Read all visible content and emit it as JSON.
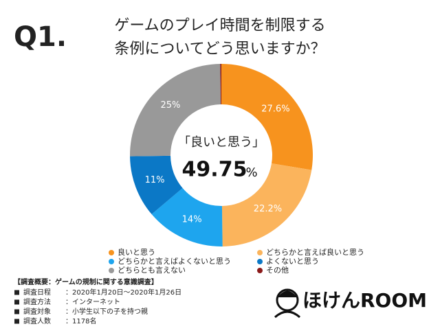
{
  "chart_data": {
    "type": "donut",
    "badge": "Q1.",
    "title_lines": [
      "ゲームのプレイ時間を制限する",
      "条例についてどう思いますか？"
    ],
    "categories": [
      "良いと思う",
      "どちらかと言えば良いと思う",
      "どちらかと言えばよくないと思う",
      "よくないと思う",
      "どちらとも言えない",
      "その他"
    ],
    "values": [
      27.6,
      22.2,
      14,
      11,
      25,
      0.2
    ],
    "value_labels": [
      "27.6%",
      "22.2%",
      "14%",
      "11%",
      "25%",
      null
    ],
    "colors": [
      "#f7931e",
      "#fbb45c",
      "#1ea5ee",
      "#0b78c6",
      "#999999",
      "#8b1a1a"
    ],
    "center_label": "「良いと思う」",
    "center_value": "49.75",
    "center_unit": "%",
    "legend_columns": 2,
    "survey": {
      "heading": "【調査概要：ゲームの規制に関する意識調査】",
      "rows": [
        [
          "調査日程",
          "：2020年1月20日〜2020年1月26日"
        ],
        [
          "調査方法",
          "：インターネット"
        ],
        [
          "調査対象",
          "：小学生以下の子を持つ親"
        ],
        [
          "調査人数",
          "：1178名"
        ]
      ]
    },
    "logo": "ほけんROOM"
  }
}
